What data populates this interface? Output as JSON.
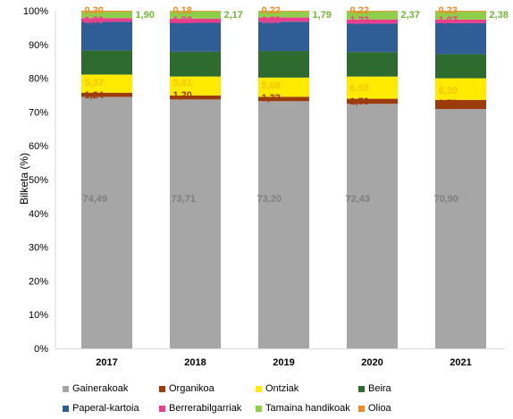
{
  "chart_data": {
    "type": "bar",
    "stacked": true,
    "ylabel": "Bilketa (%)",
    "ylim": [
      0,
      100
    ],
    "y_ticks": [
      "0%",
      "10%",
      "20%",
      "30%",
      "40%",
      "50%",
      "60%",
      "70%",
      "80%",
      "90%",
      "100%"
    ],
    "categories": [
      "2017",
      "2018",
      "2019",
      "2020",
      "2021"
    ],
    "series": [
      {
        "name": "Gainerakoak",
        "color": "#a6a6a6",
        "label_color": "#7f7f7f",
        "values": [
          74.49,
          73.71,
          73.2,
          72.43,
          70.9
        ],
        "labels": [
          "74,49",
          "73,71",
          "73,20",
          "72,43",
          "70,90"
        ]
      },
      {
        "name": "Organikoa",
        "color": "#9c3b0b",
        "label_color": "#9c3b0b",
        "values": [
          1.24,
          1.2,
          1.32,
          1.5,
          2.7
        ],
        "labels": [
          "1,24",
          "1,20",
          "1,32",
          "1,50",
          "2,70"
        ]
      },
      {
        "name": "Ontziak",
        "color": "#ffea00",
        "label_color": "#f2c800",
        "values": [
          5.37,
          5.61,
          5.68,
          6.58,
          6.39
        ],
        "labels": [
          "5,37",
          "5,61",
          "5,68",
          "6,58",
          "6,39"
        ]
      },
      {
        "name": "Beira",
        "color": "#2e6b2e",
        "label_color": "#2e6b2e",
        "values": [
          7.16,
          7.34,
          7.87,
          7.23,
          7.15
        ],
        "labels": [
          "7,16",
          "7,34",
          "7,87",
          "7,23",
          "7,15"
        ]
      },
      {
        "name": "Paperal-kartoia",
        "color": "#2f5d95",
        "label_color": "#2f5d95",
        "values": [
          8.46,
          8.57,
          8.69,
          8.45,
          9.18
        ],
        "labels": [
          "8,46",
          "8,57",
          "8,69",
          "8,45",
          "9,18"
        ]
      },
      {
        "name": "Berrerabilgarriak",
        "color": "#e83e8c",
        "label_color": "#e83e8c",
        "values": [
          1.09,
          1.22,
          1.23,
          1.22,
          1.07
        ],
        "labels": [
          "1,09",
          "1,22",
          "1,23",
          "1,22",
          "1,07"
        ]
      },
      {
        "name": "Tamaina handikoak",
        "color": "#8fce4a",
        "label_color": "#72b63a",
        "values": [
          1.9,
          2.17,
          1.79,
          2.37,
          2.38
        ],
        "labels": [
          "1,90",
          "2,17",
          "1,79",
          "2,37",
          "2,38"
        ]
      },
      {
        "name": "Olioa",
        "color": "#f08a24",
        "label_color": "#f08a24",
        "values": [
          0.3,
          0.18,
          0.22,
          0.22,
          0.23
        ],
        "labels": [
          "0,30",
          "0,18",
          "0,22",
          "0,22",
          "0,23"
        ]
      }
    ],
    "legend_position": "bottom",
    "grid": false
  }
}
